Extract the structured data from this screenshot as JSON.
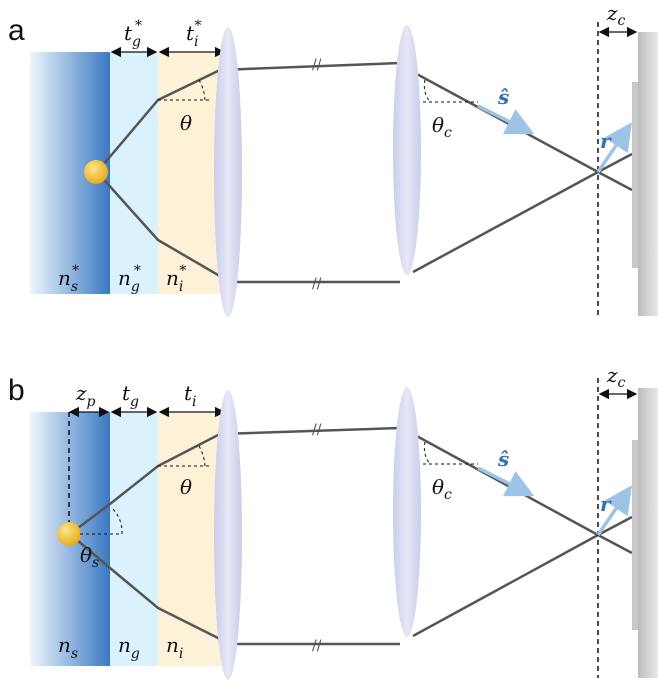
{
  "panels": [
    {
      "letter": "a",
      "slab_labels": {
        "sample": "n",
        "sample_sub": "s",
        "sample_sup": "*",
        "glass": "n",
        "glass_sub": "g",
        "glass_sup": "*",
        "immersion": "n",
        "immersion_sub": "i",
        "immersion_sup": "*"
      },
      "thickness_labels": {
        "glass": "t",
        "glass_sub": "g",
        "glass_sup": "*",
        "immersion": "t",
        "immersion_sub": "i",
        "immersion_sup": "*"
      },
      "angle_obj": "θ",
      "angle_tube": "θ",
      "angle_tube_sub": "c",
      "unit_vector": "ŝ",
      "position_vector": "r",
      "defocus": "z",
      "defocus_sub": "c"
    },
    {
      "letter": "b",
      "slab_labels": {
        "sample": "n",
        "sample_sub": "s",
        "glass": "n",
        "glass_sub": "g",
        "immersion": "n",
        "immersion_sub": "i"
      },
      "thickness_labels": {
        "particle": "z",
        "particle_sub": "p",
        "glass": "t",
        "glass_sub": "g",
        "immersion": "t",
        "immersion_sub": "i"
      },
      "angle_obj": "θ",
      "angle_sample": "θ",
      "angle_sample_sub": "s",
      "angle_tube": "θ",
      "angle_tube_sub": "c",
      "unit_vector": "ŝ",
      "position_vector": "r",
      "defocus": "z",
      "defocus_sub": "c"
    }
  ],
  "colors": {
    "sample_dark": "#3a78c2",
    "sample_light": "#e4f0fb",
    "glass": "#d9f2fd",
    "immersion": "#fdf2d8",
    "lens": "#d4d8ee",
    "ray": "#555555",
    "vector": "#9dc3e6",
    "particle": "#f0b922",
    "detector": "#c8c8c8"
  }
}
